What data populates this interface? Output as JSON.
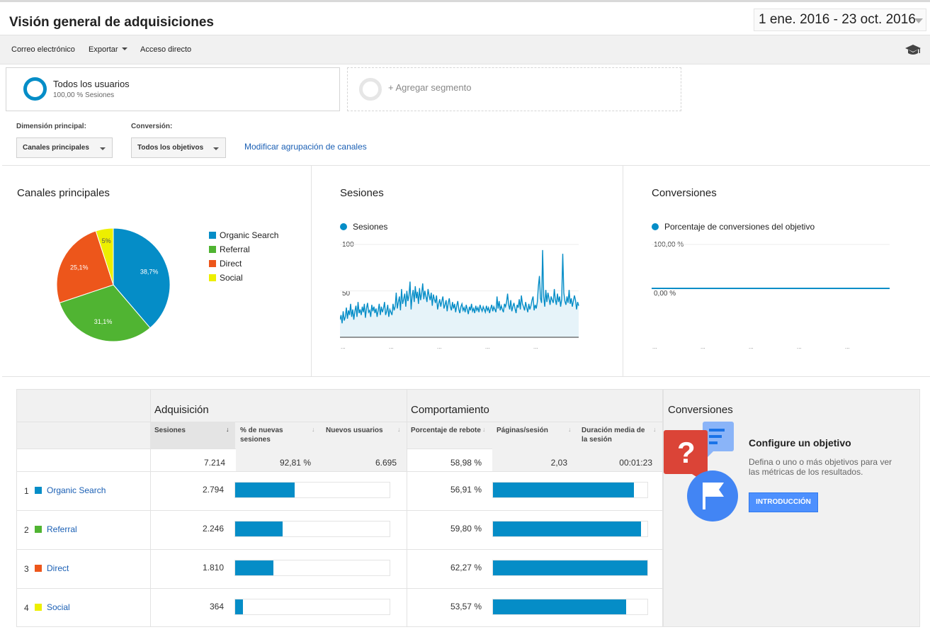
{
  "header": {
    "title": "Visión general de adquisiciones",
    "date_range": "1 ene. 2016 - 23 oct. 2016"
  },
  "toolbar": {
    "email": "Correo electrónico",
    "export": "Exportar",
    "shortcut": "Acceso directo"
  },
  "segments": {
    "active_title": "Todos los usuarios",
    "active_sub": "100,00 % Sesiones",
    "add_label": "+ Agregar segmento"
  },
  "controls": {
    "dimension_label": "Dimensión principal:",
    "dimension_value": "Canales principales",
    "conversion_label": "Conversión:",
    "conversion_value": "Todos los objetivos",
    "modify_link": "Modificar agrupación de canales"
  },
  "colors": {
    "organic": "#058dc7",
    "referral": "#50b432",
    "direct": "#ed561b",
    "social": "#edef00",
    "link": "#1a5fb4",
    "accent": "#4d90fe"
  },
  "panels": {
    "channels_title": "Canales principales",
    "sessions_title": "Sesiones",
    "conversions_title": "Conversiones"
  },
  "chart_data": [
    {
      "type": "pie",
      "title": "Canales principales",
      "categories": [
        "Organic Search",
        "Referral",
        "Direct",
        "Social"
      ],
      "values": [
        38.7,
        31.1,
        25.1,
        5.0
      ],
      "slice_labels": [
        "38,7%",
        "31,1%",
        "25,1%",
        "5%"
      ],
      "legend": "right"
    },
    {
      "type": "area",
      "series": [
        {
          "name": "Sesiones",
          "values": [
            19,
            24,
            15,
            28,
            18,
            22,
            32,
            20,
            29,
            24,
            36,
            22,
            30,
            19,
            28,
            34,
            22,
            38,
            26,
            30,
            24,
            33,
            27,
            36,
            21,
            31,
            37,
            27,
            29,
            22,
            35,
            28,
            33,
            26,
            31,
            22,
            29,
            36,
            24,
            33,
            27,
            31,
            38,
            24,
            28,
            35,
            22,
            30,
            27,
            24,
            36,
            29,
            33,
            48,
            31,
            38,
            44,
            29,
            52,
            36,
            41,
            47,
            33,
            50,
            39,
            45,
            60,
            30,
            44,
            51,
            38,
            55,
            42,
            49,
            36,
            53,
            40,
            47,
            58,
            41,
            50,
            44,
            38,
            52,
            45,
            40,
            48,
            34,
            46,
            41,
            37,
            45,
            30,
            36,
            41,
            33,
            39,
            44,
            31,
            35,
            40,
            28,
            37,
            42,
            33,
            29,
            38,
            31,
            36,
            27,
            34,
            39,
            30,
            26,
            33,
            36,
            29,
            32,
            27,
            35,
            30,
            25,
            33,
            29,
            36,
            28,
            31,
            26,
            34,
            29,
            32,
            27,
            35,
            31,
            28,
            33,
            30,
            27,
            34,
            29,
            32,
            26,
            31,
            35,
            28,
            33,
            30,
            27,
            44,
            31,
            39,
            29,
            34,
            30,
            27,
            36,
            33,
            38,
            47,
            35,
            30,
            40,
            28,
            33,
            37,
            31,
            26,
            35,
            32,
            41,
            30,
            45,
            36,
            33,
            29,
            38,
            32,
            27,
            36,
            30,
            34,
            40,
            44,
            29,
            35,
            31,
            38,
            55,
            66,
            42,
            37,
            94,
            44,
            33,
            51,
            38,
            48,
            42,
            35,
            44,
            40,
            37,
            52,
            41,
            35,
            47,
            38,
            44,
            33,
            41,
            90,
            48,
            39,
            35,
            44,
            37,
            51,
            36,
            42,
            33,
            39,
            45,
            40,
            30,
            38,
            34
          ]
        }
      ],
      "y_ticks": [
        "100",
        "50"
      ],
      "ylim": [
        0,
        100
      ],
      "x_ticks": [
        "...",
        "...",
        "...",
        "...",
        "..."
      ],
      "legend": "top-left"
    },
    {
      "type": "line",
      "series": [
        {
          "name": "Porcentaje de conversiones del objetivo",
          "values": [
            0,
            0
          ]
        }
      ],
      "y_ticks": [
        "100,00 %",
        "0,00 %"
      ],
      "ylim": [
        0,
        100
      ],
      "x_ticks": [
        "...",
        "...",
        "...",
        "...",
        "..."
      ],
      "legend": "top-left"
    },
    {
      "type": "table",
      "group_headers": [
        "Adquisición",
        "Comportamiento"
      ],
      "columns": [
        "Sesiones",
        "% de nuevas sesiones",
        "Nuevos usuarios",
        "Porcentaje de rebote",
        "Páginas/sesión",
        "Duración media de la sesión"
      ],
      "totals": [
        "7.214",
        "92,81 %",
        "6.695",
        "58,98 %",
        "2,03",
        "00:01:23"
      ],
      "rows": [
        {
          "num": "1",
          "name": "Organic Search",
          "sessions": "2.794",
          "sessions_value": 2794,
          "bounce": "56,91 %",
          "bounce_value": 56.91
        },
        {
          "num": "2",
          "name": "Referral",
          "sessions": "2.246",
          "sessions_value": 2246,
          "bounce": "59,80 %",
          "bounce_value": 59.8
        },
        {
          "num": "3",
          "name": "Direct",
          "sessions": "1.810",
          "sessions_value": 1810,
          "bounce": "62,27 %",
          "bounce_value": 62.27
        },
        {
          "num": "4",
          "name": "Social",
          "sessions": "364",
          "sessions_value": 364,
          "bounce": "53,57 %",
          "bounce_value": 53.57
        }
      ]
    }
  ],
  "conversions_box": {
    "title": "Conversiones",
    "heading": "Configure un objetivo",
    "text": "Defina o uno o más objetivos para ver las métricas de los resultados.",
    "button": "INTRODUCCIÓN"
  }
}
